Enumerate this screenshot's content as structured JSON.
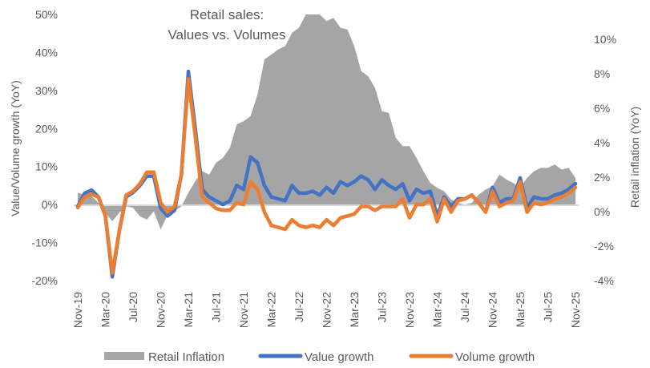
{
  "chart_data": {
    "type": "line",
    "title_lines": [
      "Retail sales:",
      "Values vs. Volumes"
    ],
    "ylabel": "Value/Volume  growth (YoY)",
    "y2label": "Retail inflation (YoY)",
    "ylim": [
      -20,
      50
    ],
    "y2lim": [
      -4,
      11.4
    ],
    "yticks": [
      "-20%",
      "-10%",
      "0%",
      "10%",
      "20%",
      "30%",
      "40%",
      "50%"
    ],
    "y2ticks": [
      "-4%",
      "-2%",
      "0%",
      "2%",
      "4%",
      "6%",
      "8%",
      "10%"
    ],
    "xtick_labels": [
      "Nov-19",
      "Mar-20",
      "Jul-20",
      "Nov-20",
      "Mar-21",
      "Jul-21",
      "Nov-21",
      "Mar-22",
      "Jul-22",
      "Nov-22",
      "Mar-23",
      "Jul-23",
      "Nov-23",
      "Mar-24",
      "Jul-24",
      "Nov-24",
      "Mar-25",
      "Jul-25",
      "Nov-25"
    ],
    "x_months_count": 73,
    "legend_position": "bottom",
    "grid": false,
    "series": [
      {
        "name": "Retail Inflation",
        "type": "area",
        "axis": "right",
        "color": "#A5A5A5",
        "values": [
          0.7,
          0.6,
          0.5,
          0.1,
          -0.5,
          -1.0,
          -0.5,
          -0.1,
          -0.2,
          -0.7,
          -0.9,
          -0.4,
          -1.5,
          -0.6,
          -0.4,
          -0.1,
          0.7,
          1.4,
          2.0,
          1.8,
          2.5,
          2.8,
          3.4,
          4.8,
          5.0,
          5.3,
          6.6,
          8.7,
          9.0,
          9.3,
          9.5,
          10.3,
          10.6,
          11.5,
          11.5,
          11.5,
          11.0,
          11.2,
          10.6,
          10.5,
          9.5,
          8.0,
          7.7,
          7.0,
          5.6,
          5.5,
          4.0,
          3.5,
          3.5,
          2.8,
          2.0,
          1.3,
          1.0,
          0.8,
          0.3,
          0.1,
          0.0,
          0.1,
          0.6,
          0.9,
          1.1,
          1.8,
          1.5,
          1.3,
          1.0,
          1.6,
          2.0,
          2.2,
          2.2,
          2.4,
          2.1,
          2.2,
          1.6
        ]
      },
      {
        "name": "Value growth",
        "type": "line",
        "axis": "left",
        "color": "#4472C4",
        "values": [
          -0.5,
          3,
          3.8,
          2,
          -3,
          -19,
          -7,
          2,
          3.2,
          5,
          7.5,
          7.5,
          -1,
          -3,
          -1.5,
          8,
          35,
          20,
          4,
          2,
          1,
          0,
          1,
          5,
          4,
          12.5,
          11,
          5,
          2,
          1.5,
          1,
          5,
          3,
          3,
          3.5,
          2.5,
          4.5,
          3,
          6,
          5,
          6,
          7.5,
          6.5,
          4,
          6.5,
          5,
          4,
          5.5,
          1,
          4,
          3,
          3.5,
          -3,
          2,
          -0.5,
          1.5,
          1.5,
          2.5,
          0.5,
          -2,
          4.5,
          0.5,
          1.5,
          1.5,
          7,
          -1,
          2,
          1.5,
          1.5,
          2.5,
          3,
          4,
          5.5
        ]
      },
      {
        "name": "Volume growth",
        "type": "line",
        "axis": "left",
        "color": "#ED7D31",
        "values": [
          -0.8,
          2,
          2.7,
          2,
          -3,
          -18,
          -7,
          2.5,
          3.5,
          5.5,
          8.5,
          8.5,
          0.5,
          -2,
          -0.5,
          8,
          33,
          18,
          2,
          0.5,
          -1,
          -1.5,
          -1.5,
          0.5,
          0,
          6,
          4,
          -2,
          -5.5,
          -6,
          -6.5,
          -4,
          -5.5,
          -6,
          -5.5,
          -6,
          -4,
          -5.5,
          -3.5,
          -3,
          -2.5,
          -0.5,
          -0.5,
          -1.5,
          -0.5,
          -0.5,
          -0.5,
          1.5,
          -3.5,
          0,
          0,
          1.5,
          -4.5,
          1.5,
          -2,
          1,
          1.5,
          2.5,
          0.5,
          -2,
          3.5,
          -0.5,
          0.5,
          1,
          6,
          -2,
          0.5,
          0,
          0.5,
          1.5,
          2,
          3,
          4.5
        ]
      }
    ]
  }
}
